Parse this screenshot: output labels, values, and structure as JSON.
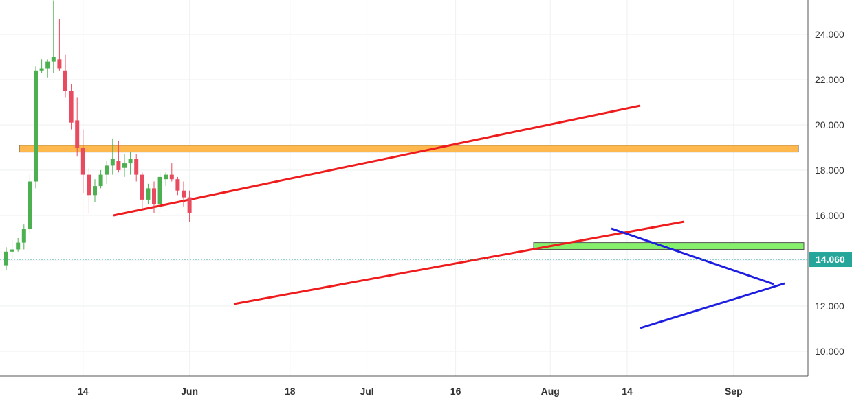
{
  "chart_data": {
    "type": "candlestick",
    "title": "",
    "xlabel": "",
    "ylabel": "",
    "ylim": [
      9.0,
      26.0
    ],
    "grid": true,
    "y_ticks": [
      "24.000",
      "22.000",
      "20.000",
      "18.000",
      "16.000",
      "12.000",
      "10.000"
    ],
    "y_tick_values": [
      24,
      22,
      20,
      18,
      16,
      12,
      10
    ],
    "x_ticks": [
      {
        "label": "14",
        "day": 14
      },
      {
        "label": "Jun",
        "day": 32
      },
      {
        "label": "18",
        "day": 49
      },
      {
        "label": "Jul",
        "day": 62
      },
      {
        "label": "16",
        "day": 77
      },
      {
        "label": "Aug",
        "day": 93
      },
      {
        "label": "14",
        "day": 106
      },
      {
        "label": "Sep",
        "day": 124
      }
    ],
    "last_price": {
      "label": "14.060",
      "value": 14.06,
      "color": "#26a69a"
    },
    "colors": {
      "up": "#4caf50",
      "down": "#e84a5f",
      "grid": "#eef2f2"
    },
    "candles": [
      [
        1,
        13.8,
        14.6,
        13.6,
        14.4
      ],
      [
        2,
        14.4,
        14.9,
        14.1,
        14.5
      ],
      [
        3,
        14.5,
        15.0,
        14.4,
        14.8
      ],
      [
        4,
        14.8,
        15.6,
        14.5,
        15.4
      ],
      [
        5,
        15.4,
        17.8,
        15.2,
        17.5
      ],
      [
        6,
        17.5,
        22.6,
        17.2,
        22.4
      ],
      [
        7,
        22.4,
        22.9,
        22.3,
        22.5
      ],
      [
        8,
        22.5,
        22.9,
        22.1,
        22.8
      ],
      [
        9,
        22.8,
        25.5,
        22.3,
        23.0
      ],
      [
        10,
        22.9,
        24.7,
        22.4,
        22.5
      ],
      [
        11,
        22.4,
        23.1,
        21.2,
        21.5
      ],
      [
        12,
        21.5,
        21.8,
        19.8,
        20.1
      ],
      [
        13,
        20.2,
        21.2,
        18.6,
        19.0
      ],
      [
        14,
        19.0,
        19.8,
        17.0,
        17.8
      ],
      [
        15,
        17.8,
        18.1,
        16.1,
        16.9
      ],
      [
        16,
        16.9,
        17.6,
        16.6,
        17.3
      ],
      [
        17,
        17.3,
        18.0,
        17.2,
        17.8
      ],
      [
        18,
        17.8,
        18.4,
        17.4,
        18.2
      ],
      [
        19,
        18.2,
        19.4,
        17.8,
        18.5
      ],
      [
        20,
        18.4,
        19.3,
        17.9,
        18.0
      ],
      [
        21,
        18.1,
        18.7,
        17.7,
        18.3
      ],
      [
        22,
        18.3,
        18.8,
        17.8,
        18.5
      ],
      [
        23,
        18.5,
        18.7,
        17.5,
        17.8
      ],
      [
        24,
        17.8,
        17.9,
        16.3,
        16.7
      ],
      [
        25,
        16.7,
        17.4,
        16.5,
        17.2
      ],
      [
        26,
        17.2,
        17.5,
        16.1,
        16.5
      ],
      [
        27,
        16.5,
        17.9,
        16.3,
        17.7
      ],
      [
        28,
        17.6,
        17.9,
        17.3,
        17.8
      ],
      [
        29,
        17.8,
        18.3,
        17.5,
        17.6
      ],
      [
        30,
        17.6,
        17.7,
        16.9,
        17.1
      ],
      [
        31,
        17.1,
        17.5,
        16.4,
        16.8
      ],
      [
        32,
        16.8,
        17.1,
        15.7,
        16.1
      ]
    ]
  }
}
